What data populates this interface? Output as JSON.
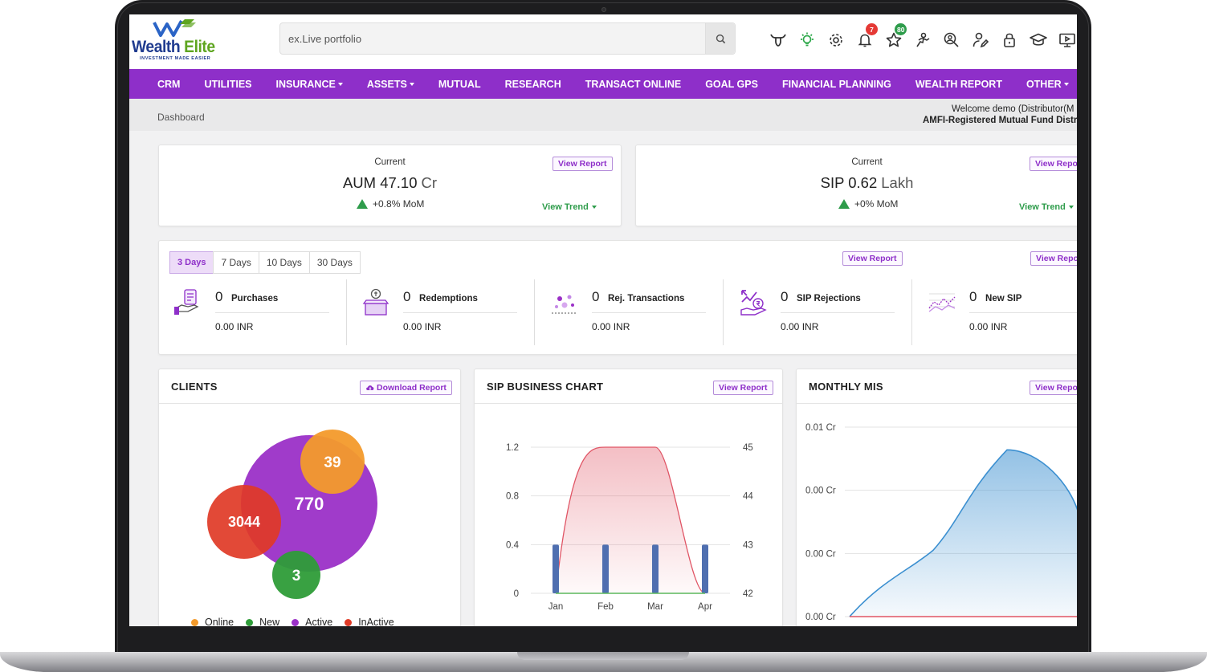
{
  "app": {
    "logo_word1": "Wealth",
    "logo_word2": "Elite",
    "logo_tagline": "INVESTMENT MADE EASIER"
  },
  "search": {
    "placeholder": "ex.Live portfolio"
  },
  "top_icons": [
    {
      "name": "bull-icon"
    },
    {
      "name": "lightbulb-icon"
    },
    {
      "name": "gear-icon"
    },
    {
      "name": "bell-icon",
      "badge": "7"
    },
    {
      "name": "star-icon",
      "badge": "80"
    },
    {
      "name": "user-run-icon"
    },
    {
      "name": "user-search-icon"
    },
    {
      "name": "user-edit-icon"
    },
    {
      "name": "lock-icon"
    },
    {
      "name": "graduation-cap-icon"
    },
    {
      "name": "monitor-icon"
    }
  ],
  "nav": [
    {
      "label": "CRM",
      "dropdown": false
    },
    {
      "label": "UTILITIES",
      "dropdown": false
    },
    {
      "label": "INSURANCE",
      "dropdown": true
    },
    {
      "label": "ASSETS",
      "dropdown": true
    },
    {
      "label": "MUTUAL",
      "dropdown": false
    },
    {
      "label": "RESEARCH",
      "dropdown": false
    },
    {
      "label": "TRANSACT ONLINE",
      "dropdown": false
    },
    {
      "label": "GOAL GPS",
      "dropdown": false
    },
    {
      "label": "FINANCIAL PLANNING",
      "dropdown": false
    },
    {
      "label": "WEALTH REPORT",
      "dropdown": false
    },
    {
      "label": "OTHER",
      "dropdown": true
    }
  ],
  "breadcrumb": "Dashboard",
  "welcome": {
    "line1": "Welcome demo (Distributor(M",
    "line2": "AMFI-Registered Mutual Fund Distri"
  },
  "kpis": {
    "aum": {
      "current": "Current",
      "label": "AUM 47.10",
      "unit": "Cr",
      "mom": "+0.8% MoM",
      "view_report": "View Report",
      "view_trend": "View Trend"
    },
    "sip": {
      "current": "Current",
      "label": "SIP 0.62",
      "unit": "Lakh",
      "mom": "+0% MoM",
      "view_report": "View Repor",
      "view_trend": "View Trend"
    }
  },
  "transactions": {
    "tabs": [
      "3 Days",
      "7 Days",
      "10 Days",
      "30 Days"
    ],
    "active_tab": "3 Days",
    "view_report_1": "View Report",
    "view_report_2": "View Repor",
    "stats": [
      {
        "count": "0",
        "label": "Purchases",
        "inr": "0.00 INR",
        "icon": "purchase-icon"
      },
      {
        "count": "0",
        "label": "Redemptions",
        "inr": "0.00 INR",
        "icon": "redemption-icon"
      },
      {
        "count": "0",
        "label": "Rej. Transactions",
        "inr": "0.00 INR",
        "icon": "rejected-transactions-icon"
      },
      {
        "count": "0",
        "label": "SIP Rejections",
        "inr": "0.00 INR",
        "icon": "sip-rejection-icon"
      },
      {
        "count": "0",
        "label": "New SIP",
        "inr": "0.00 INR",
        "icon": "new-sip-icon"
      }
    ]
  },
  "clients": {
    "title": "CLIENTS",
    "download": "Download Report",
    "bubbles": [
      {
        "label": "Online",
        "value": "39",
        "color": "#f39a2b"
      },
      {
        "label": "New",
        "value": "3",
        "color": "#2e9c38"
      },
      {
        "label": "Active",
        "value": "770",
        "color": "#9b30c7"
      },
      {
        "label": "InActive",
        "value": "3044",
        "color": "#e03a26"
      }
    ]
  },
  "sip_chart": {
    "title": "SIP BUSINESS CHART",
    "view_report": "View Report"
  },
  "mis": {
    "title": "MONTHLY MIS",
    "view_report": "View Repor"
  },
  "chart_data": [
    {
      "type": "bar",
      "title": "SIP BUSINESS CHART",
      "categories": [
        "Jan",
        "Feb",
        "Mar",
        "Apr"
      ],
      "left_axis": {
        "ticks": [
          "0",
          "0.4",
          "0.8",
          "1.2"
        ],
        "ylim": [
          0,
          1.2
        ]
      },
      "right_axis": {
        "ticks": [
          "42",
          "43",
          "44",
          "45"
        ],
        "ylim": [
          42,
          45
        ]
      },
      "series": [
        {
          "kind": "bar",
          "axis": "left",
          "color": "#4f6fb0",
          "values": [
            0.4,
            0.4,
            0.4,
            0.4
          ]
        },
        {
          "kind": "area",
          "axis": "right",
          "color": "#e05565",
          "values": [
            42,
            45,
            45,
            42
          ]
        },
        {
          "kind": "line",
          "axis": "left",
          "color": "#5cb85c",
          "values": [
            0,
            0,
            0,
            0
          ]
        }
      ],
      "grid": true
    },
    {
      "type": "area",
      "title": "MONTHLY MIS",
      "y_ticks": [
        "0.01 Cr",
        "0.00 Cr",
        "0.00 Cr",
        "0.00 Cr"
      ],
      "series": [
        {
          "kind": "area",
          "color": "#3b8fd0",
          "values": [
            0,
            0.35,
            0.7,
            0.88,
            0.42
          ]
        },
        {
          "kind": "line",
          "color": "#e05565",
          "values": [
            0,
            0,
            0,
            0,
            0
          ]
        }
      ],
      "grid": true
    }
  ]
}
